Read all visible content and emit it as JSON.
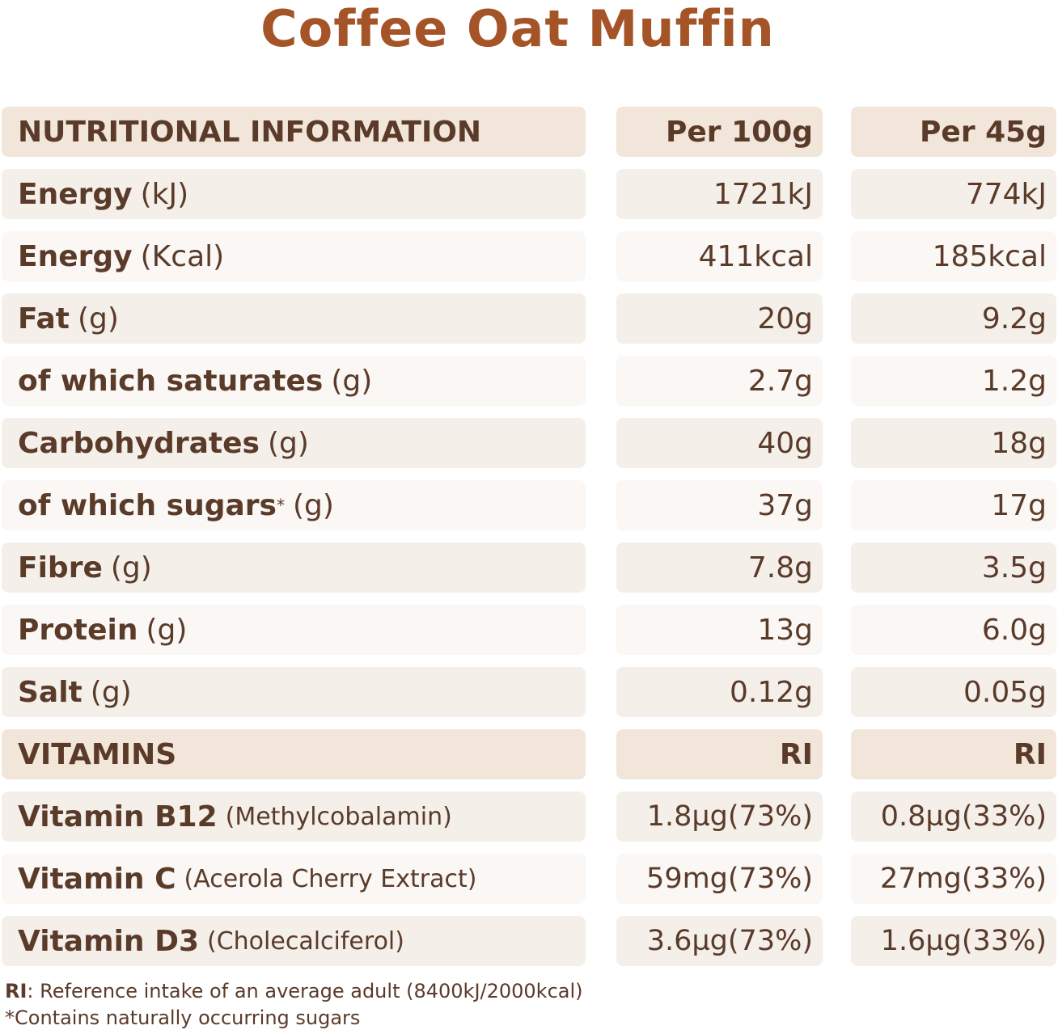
{
  "title": "Coffee Oat Muffin",
  "table": {
    "header": {
      "label": "NUTRITIONAL INFORMATION",
      "per100": "Per 100g",
      "per45": "Per 45g"
    },
    "rows": [
      {
        "name": "Energy",
        "unit": "(kJ)",
        "per100": "1721kJ",
        "per45": "774kJ"
      },
      {
        "name": "Energy",
        "unit": "(Kcal)",
        "per100": "411kcal",
        "per45": "185kcal"
      },
      {
        "name": "Fat",
        "unit": "(g)",
        "per100": "20g",
        "per45": "9.2g"
      },
      {
        "name": "of which saturates",
        "unit": "(g)",
        "per100": "2.7g",
        "per45": "1.2g"
      },
      {
        "name": "Carbohydrates",
        "unit": "(g)",
        "per100": "40g",
        "per45": "18g"
      },
      {
        "name": "of which sugars",
        "mark": "*",
        "unit": "(g)",
        "per100": "37g",
        "per45": "17g"
      },
      {
        "name": "Fibre",
        "unit": "(g)",
        "per100": "7.8g",
        "per45": "3.5g"
      },
      {
        "name": "Protein",
        "unit": "(g)",
        "per100": "13g",
        "per45": "6.0g"
      },
      {
        "name": "Salt",
        "unit": "(g)",
        "per100": "0.12g",
        "per45": "0.05g"
      }
    ],
    "vitamins_header": {
      "label": "VITAMINS",
      "per100": "RI",
      "per45": "RI"
    },
    "vitamins": [
      {
        "name": "Vitamin B12",
        "source": "(Methylcobalamin)",
        "per100": "1.8µg(73%)",
        "per45": "0.8µg(33%)"
      },
      {
        "name": "Vitamin C",
        "source": "(Acerola Cherry Extract)",
        "per100": "59mg(73%)",
        "per45": "27mg(33%)"
      },
      {
        "name": "Vitamin D3",
        "source": "(Cholecalciferol)",
        "per100": "3.6µg(73%)",
        "per45": "1.6µg(33%)"
      }
    ]
  },
  "footer": {
    "ri_abbr": "RI",
    "ri_text": ": Reference intake of an average adult (8400kJ/2000kcal)",
    "sugars_note": "*Contains naturally occurring sugars"
  },
  "colors": {
    "title": "#a45427",
    "text": "#5a3b2a",
    "header_bg": "#f2e6da",
    "row_shade": "#f5efea",
    "row_light": "#faf7f4"
  }
}
